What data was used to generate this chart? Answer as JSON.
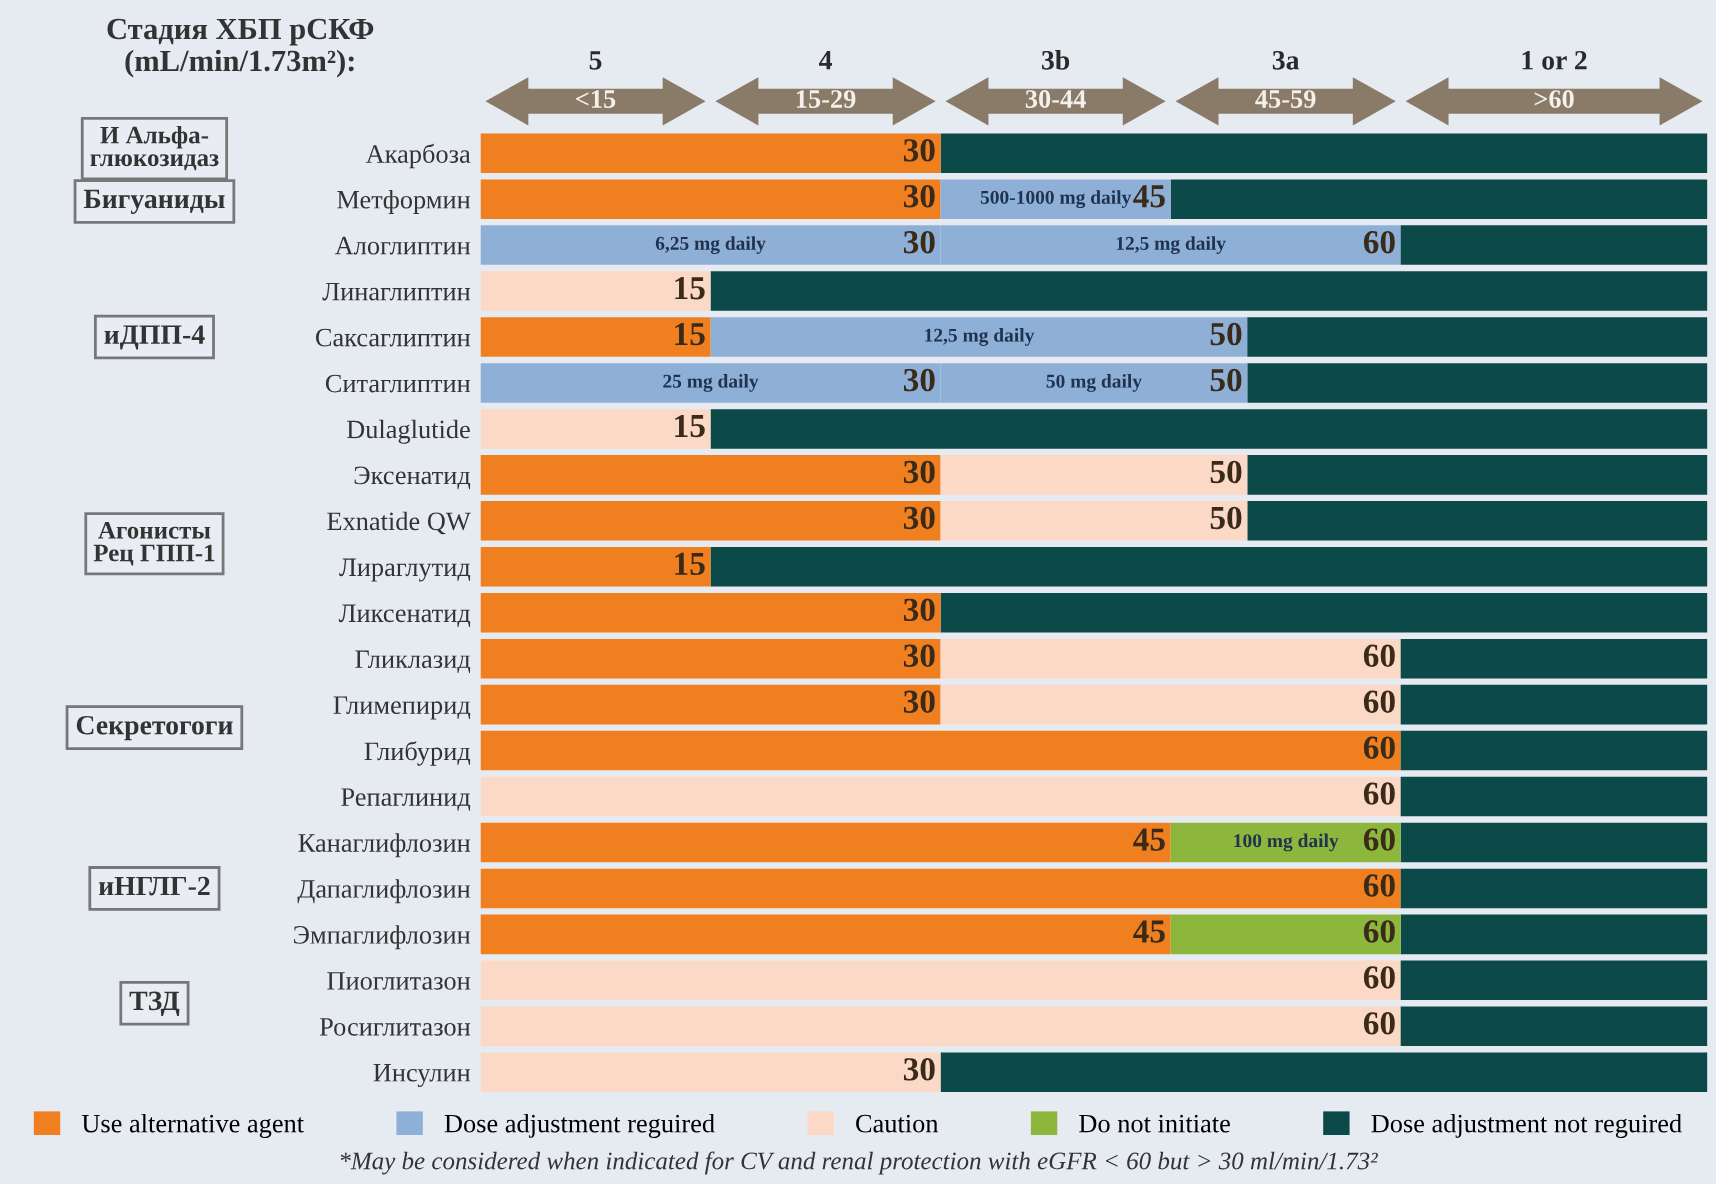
{
  "chart_data": {
    "type": "bar",
    "orientation": "horizontal",
    "stacked": true,
    "title": "Стадия ХБП рСКФ\n(mL/min/1.73m²):",
    "categories": [
      "Акарбоза",
      "Метформин",
      "Алоглиптин",
      "Линаглиптин",
      "Саксаглиптин",
      "Ситаглиптин",
      "Dulaglutide",
      "Эксенатид",
      "Exnatide QW",
      "Лираглутид",
      "Ликсенатид",
      "Гликлазид",
      "Глимепирид",
      "Глибурид",
      "Репаглинид",
      "Канаглифлозин",
      "Дапаглифлозин",
      "Эмпаглифлозин",
      "Пиоглитазон",
      "Росиглитазон",
      "Инсулин"
    ],
    "xlim": [
      0,
      80
    ],
    "series": [
      {
        "name": "Use alternative agent",
        "color": "#f07f1f",
        "values": [
          30,
          30,
          null,
          null,
          15,
          null,
          null,
          30,
          30,
          15,
          30,
          30,
          30,
          60,
          null,
          45,
          60,
          45,
          null,
          null,
          null
        ],
        "value_labels": [
          "30",
          "30",
          null,
          null,
          "15",
          null,
          null,
          "30",
          "30",
          "15",
          "30",
          "30",
          "30",
          "60",
          null,
          "45",
          "60",
          "45",
          null,
          null,
          null
        ]
      },
      {
        "name": "Dose adjustment reguired",
        "color": "#8fb0d6",
        "values": [
          null,
          15,
          30,
          null,
          35,
          30,
          null,
          null,
          null,
          null,
          null,
          null,
          null,
          null,
          null,
          null,
          null,
          null,
          null,
          null,
          null
        ]
      },
      {
        "color": "#8fb0d6",
        "values": [
          null,
          null,
          30,
          null,
          null,
          20,
          null,
          null,
          null,
          null,
          null,
          null,
          null,
          null,
          null,
          null,
          null,
          null,
          null,
          null,
          null
        ]
      },
      {
        "name": "Caution",
        "color": "#fbd9c6",
        "values": [
          null,
          null,
          null,
          15,
          null,
          null,
          15,
          20,
          20,
          null,
          null,
          30,
          30,
          null,
          60,
          null,
          null,
          null,
          60,
          60,
          30
        ],
        "value_labels": [
          null,
          null,
          null,
          "15",
          null,
          null,
          "15",
          null,
          null,
          null,
          null,
          null,
          null,
          null,
          "60",
          null,
          null,
          null,
          "60",
          "60",
          "30"
        ]
      },
      {
        "name": "Do not initiate",
        "color": "#8db63c",
        "values": [
          null,
          null,
          null,
          null,
          null,
          null,
          null,
          null,
          null,
          null,
          null,
          null,
          null,
          null,
          null,
          15,
          null,
          15,
          null,
          null,
          null
        ]
      },
      {
        "name": "Dose adjustment not reguired",
        "color": "#0b4a48",
        "values": [
          50,
          35,
          20,
          65,
          30,
          30,
          65,
          30,
          30,
          65,
          50,
          20,
          20,
          20,
          20,
          20,
          20,
          20,
          20,
          20,
          50
        ]
      }
    ],
    "annotations": [
      "5",
      "<15",
      "4",
      "15-29",
      "3b",
      "30-44",
      "3a",
      "45-59",
      "1 or 2",
      ">60",
      "И Альфа-\nглюкозидаз",
      "Бигуаниды",
      "иДПП-4",
      "Агонисты\nРец ГПП-1",
      "Секретогоги",
      "иНГЛГ-2",
      "ТЗД",
      "500-1000 mg daily",
      "6,25 mg daily",
      "12,5 mg daily",
      "12,5 mg daily",
      "25 mg daily",
      "50 mg daily",
      "100 mg daily",
      "*May be considered when indicated for CV and renal protection with eGFR < 60 but > 30 ml/min/1.73²",
      {
        "text": "45",
        "x": 45,
        "y": "Метформин"
      },
      {
        "text": "60",
        "x": 60,
        "y": "Алоглиптин"
      },
      {
        "text": "30",
        "x": 30,
        "y": "Алоглиптин"
      },
      {
        "text": "50",
        "x": 50,
        "y": "Саксаглиптин"
      },
      {
        "text": "30",
        "x": 30,
        "y": "Ситаглиптин"
      },
      {
        "text": "50",
        "x": 50,
        "y": "Ситаглиптин"
      },
      {
        "text": "50",
        "x": 50,
        "y": "Эксенатид"
      },
      {
        "text": "50",
        "x": 50,
        "y": "Exnatide QW"
      },
      {
        "text": "60",
        "x": 60,
        "y": "Гликлазид"
      },
      {
        "text": "60",
        "x": 60,
        "y": "Глимепирид"
      },
      {
        "text": "60",
        "x": 60,
        "y": "Канаглифлозин"
      },
      {
        "text": "60",
        "x": 60,
        "y": "Эмпаглифлозин"
      }
    ],
    "legend": "bottom",
    "grid": false
  }
}
